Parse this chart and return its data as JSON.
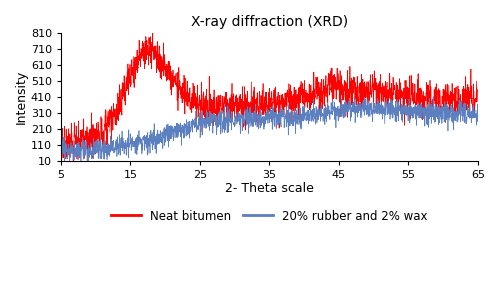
{
  "title": "X-ray diffraction (XRD)",
  "xlabel": "2- Theta scale",
  "ylabel": "Intensity",
  "xlim": [
    5,
    65
  ],
  "ylim": [
    10,
    810
  ],
  "xticks": [
    5,
    15,
    25,
    35,
    45,
    55,
    65
  ],
  "yticks": [
    10,
    110,
    210,
    310,
    410,
    510,
    610,
    710,
    810
  ],
  "red_color": "#FF0000",
  "blue_color": "#5B7FBF",
  "legend_red": "Neat bitumen",
  "legend_blue": "20% rubber and 2% wax",
  "red_base_profile": {
    "x": [
      5,
      6,
      7,
      8,
      9,
      10,
      11,
      12,
      13,
      14,
      15,
      16,
      17,
      18,
      19,
      20,
      21,
      22,
      23,
      24,
      25,
      26,
      27,
      28,
      29,
      30,
      32,
      34,
      36,
      38,
      40,
      42,
      43,
      44,
      45,
      46,
      47,
      48,
      50,
      52,
      54,
      56,
      57,
      58,
      60,
      62,
      65
    ],
    "y": [
      120,
      125,
      130,
      135,
      145,
      160,
      190,
      240,
      320,
      430,
      540,
      620,
      700,
      690,
      650,
      580,
      510,
      460,
      420,
      390,
      365,
      355,
      350,
      348,
      350,
      355,
      360,
      365,
      375,
      390,
      410,
      440,
      460,
      480,
      475,
      460,
      450,
      445,
      440,
      435,
      425,
      410,
      405,
      400,
      395,
      395,
      390
    ]
  },
  "blue_base_profile": {
    "x": [
      5,
      6,
      7,
      8,
      9,
      10,
      11,
      12,
      13,
      14,
      15,
      16,
      17,
      18,
      19,
      20,
      22,
      24,
      26,
      28,
      30,
      32,
      34,
      36,
      38,
      40,
      42,
      44,
      46,
      48,
      50,
      52,
      54,
      56,
      57,
      58,
      60,
      62,
      65
    ],
    "y": [
      75,
      77,
      79,
      80,
      82,
      85,
      90,
      95,
      100,
      105,
      112,
      118,
      125,
      135,
      150,
      170,
      205,
      235,
      255,
      265,
      268,
      270,
      272,
      275,
      280,
      290,
      305,
      320,
      330,
      335,
      335,
      330,
      325,
      318,
      312,
      308,
      305,
      305,
      305
    ]
  },
  "noise_red_amplitude": 45,
  "noise_blue_amplitude": 28,
  "n_points": 2000,
  "seed": 7
}
